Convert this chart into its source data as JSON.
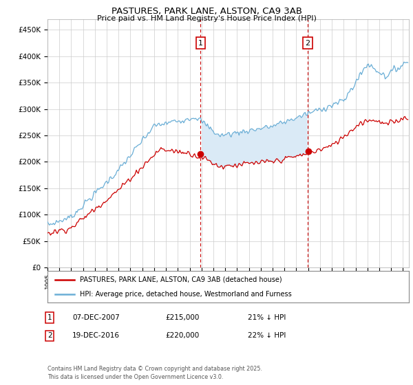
{
  "title": "PASTURES, PARK LANE, ALSTON, CA9 3AB",
  "subtitle": "Price paid vs. HM Land Registry's House Price Index (HPI)",
  "ylabel_ticks": [
    "£0",
    "£50K",
    "£100K",
    "£150K",
    "£200K",
    "£250K",
    "£300K",
    "£350K",
    "£400K",
    "£450K"
  ],
  "ytick_values": [
    0,
    50000,
    100000,
    150000,
    200000,
    250000,
    300000,
    350000,
    400000,
    450000
  ],
  "ylim": [
    0,
    470000
  ],
  "xlim_start": 1995.0,
  "xlim_end": 2025.5,
  "xtick_years": [
    1995,
    1996,
    1997,
    1998,
    1999,
    2000,
    2001,
    2002,
    2003,
    2004,
    2005,
    2006,
    2007,
    2008,
    2009,
    2010,
    2011,
    2012,
    2013,
    2014,
    2015,
    2016,
    2017,
    2018,
    2019,
    2020,
    2021,
    2022,
    2023,
    2024,
    2025
  ],
  "sale1_x": 2007.92,
  "sale1_price": 215000,
  "sale1_label": "1",
  "sale1_date": "07-DEC-2007",
  "sale1_pct": "21% ↓ HPI",
  "sale2_x": 2016.96,
  "sale2_price": 220000,
  "sale2_label": "2",
  "sale2_date": "19-DEC-2016",
  "sale2_pct": "22% ↓ HPI",
  "legend_property": "PASTURES, PARK LANE, ALSTON, CA9 3AB (detached house)",
  "legend_hpi": "HPI: Average price, detached house, Westmorland and Furness",
  "red_color": "#cc0000",
  "blue_color": "#6aaed6",
  "fill_color": "#daeaf6",
  "vline_color": "#cc0000",
  "copyright": "Contains HM Land Registry data © Crown copyright and database right 2025.\nThis data is licensed under the Open Government Licence v3.0.",
  "background_color": "#ffffff",
  "grid_color": "#cccccc"
}
